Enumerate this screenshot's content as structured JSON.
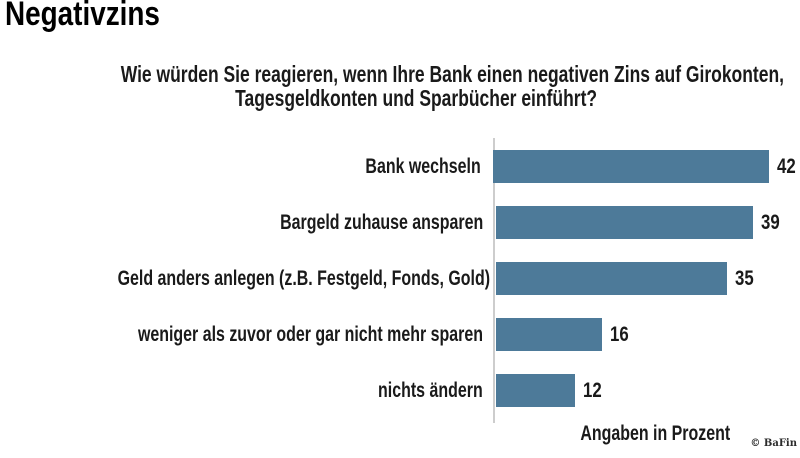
{
  "title": "Negativzins",
  "question": {
    "line1": "Wie würden Sie reagieren, wenn Ihre Bank einen negativen Zins auf Girokonten,",
    "line2": "Tagesgeldkonten und Sparbücher einführt?"
  },
  "chart_data": {
    "type": "bar",
    "orientation": "horizontal",
    "categories": [
      "Bank wechseln",
      "Bargeld zuhause ansparen",
      "Geld anders anlegen (z.B. Festgeld, Fonds, Gold)",
      "weniger als zuvor oder gar nicht mehr sparen",
      "nichts ändern"
    ],
    "values": [
      42,
      39,
      35,
      16,
      12
    ],
    "unit_label": "Angaben in Prozent",
    "bar_color": "#4d7a99",
    "value_range": [
      0,
      45
    ],
    "gridlines": false,
    "legend": "none"
  },
  "credit": "© BaFin"
}
